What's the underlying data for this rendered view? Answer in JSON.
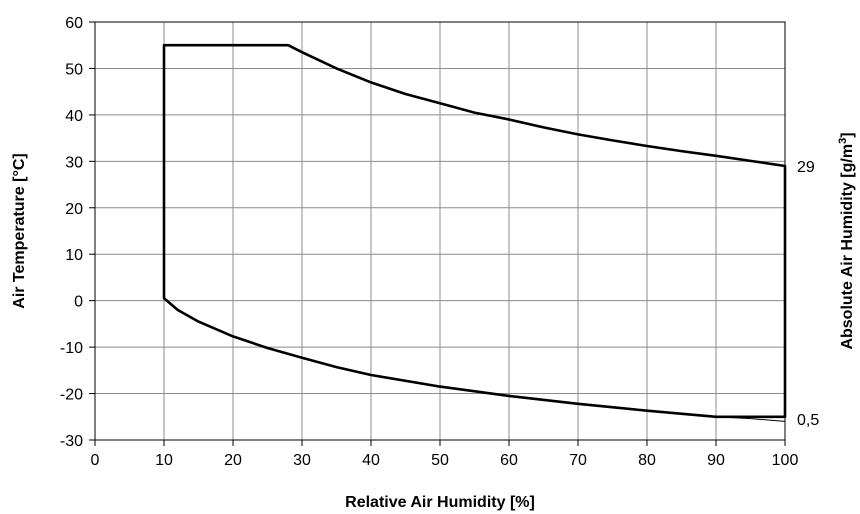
{
  "chart_data": {
    "type": "line",
    "title": "",
    "xlabel": "Relative Air Humidity [%]",
    "ylabel": "Air Temperature [°C]",
    "y2label": "Absolute Air  Humidity [g/m3]",
    "y2label_main": "Absolute Air  Humidity [g/m",
    "y2label_sup": "3",
    "y2label_end": "]",
    "xlim": [
      0,
      100
    ],
    "ylim": [
      -30,
      60
    ],
    "xticks": [
      0,
      10,
      20,
      30,
      40,
      50,
      60,
      70,
      80,
      90,
      100
    ],
    "yticks": [
      -30,
      -20,
      -10,
      0,
      10,
      20,
      30,
      40,
      50,
      60
    ],
    "grid": true,
    "legend": "none",
    "annotations": [
      "29",
      "0,5"
    ],
    "series": [
      {
        "values_note_free": true,
        "points": [
          [
            10,
            55
          ],
          [
            28,
            55
          ],
          [
            30,
            53.5
          ],
          [
            35,
            50
          ],
          [
            40,
            47
          ],
          [
            45,
            44.5
          ],
          [
            50,
            42.5
          ],
          [
            55,
            40.5
          ],
          [
            60,
            39
          ],
          [
            65,
            37.3
          ],
          [
            70,
            35.8
          ],
          [
            75,
            34.5
          ],
          [
            80,
            33.3
          ],
          [
            85,
            32.2
          ],
          [
            90,
            31.2
          ],
          [
            95,
            30.1
          ],
          [
            100,
            29
          ],
          [
            100,
            -25
          ],
          [
            90,
            -25
          ],
          [
            80,
            -23.7
          ],
          [
            70,
            -22.2
          ],
          [
            60,
            -20.5
          ],
          [
            50,
            -18.5
          ],
          [
            40,
            -16
          ],
          [
            35,
            -14.3
          ],
          [
            30,
            -12.3
          ],
          [
            25,
            -10.2
          ],
          [
            20,
            -7.7
          ],
          [
            15,
            -4.5
          ],
          [
            12,
            -2
          ],
          [
            10,
            0.5
          ],
          [
            10,
            55
          ]
        ]
      },
      {
        "points": [
          [
            90,
            -25
          ],
          [
            95,
            -25.4
          ],
          [
            100,
            -26
          ]
        ]
      }
    ],
    "color": "#000000"
  }
}
